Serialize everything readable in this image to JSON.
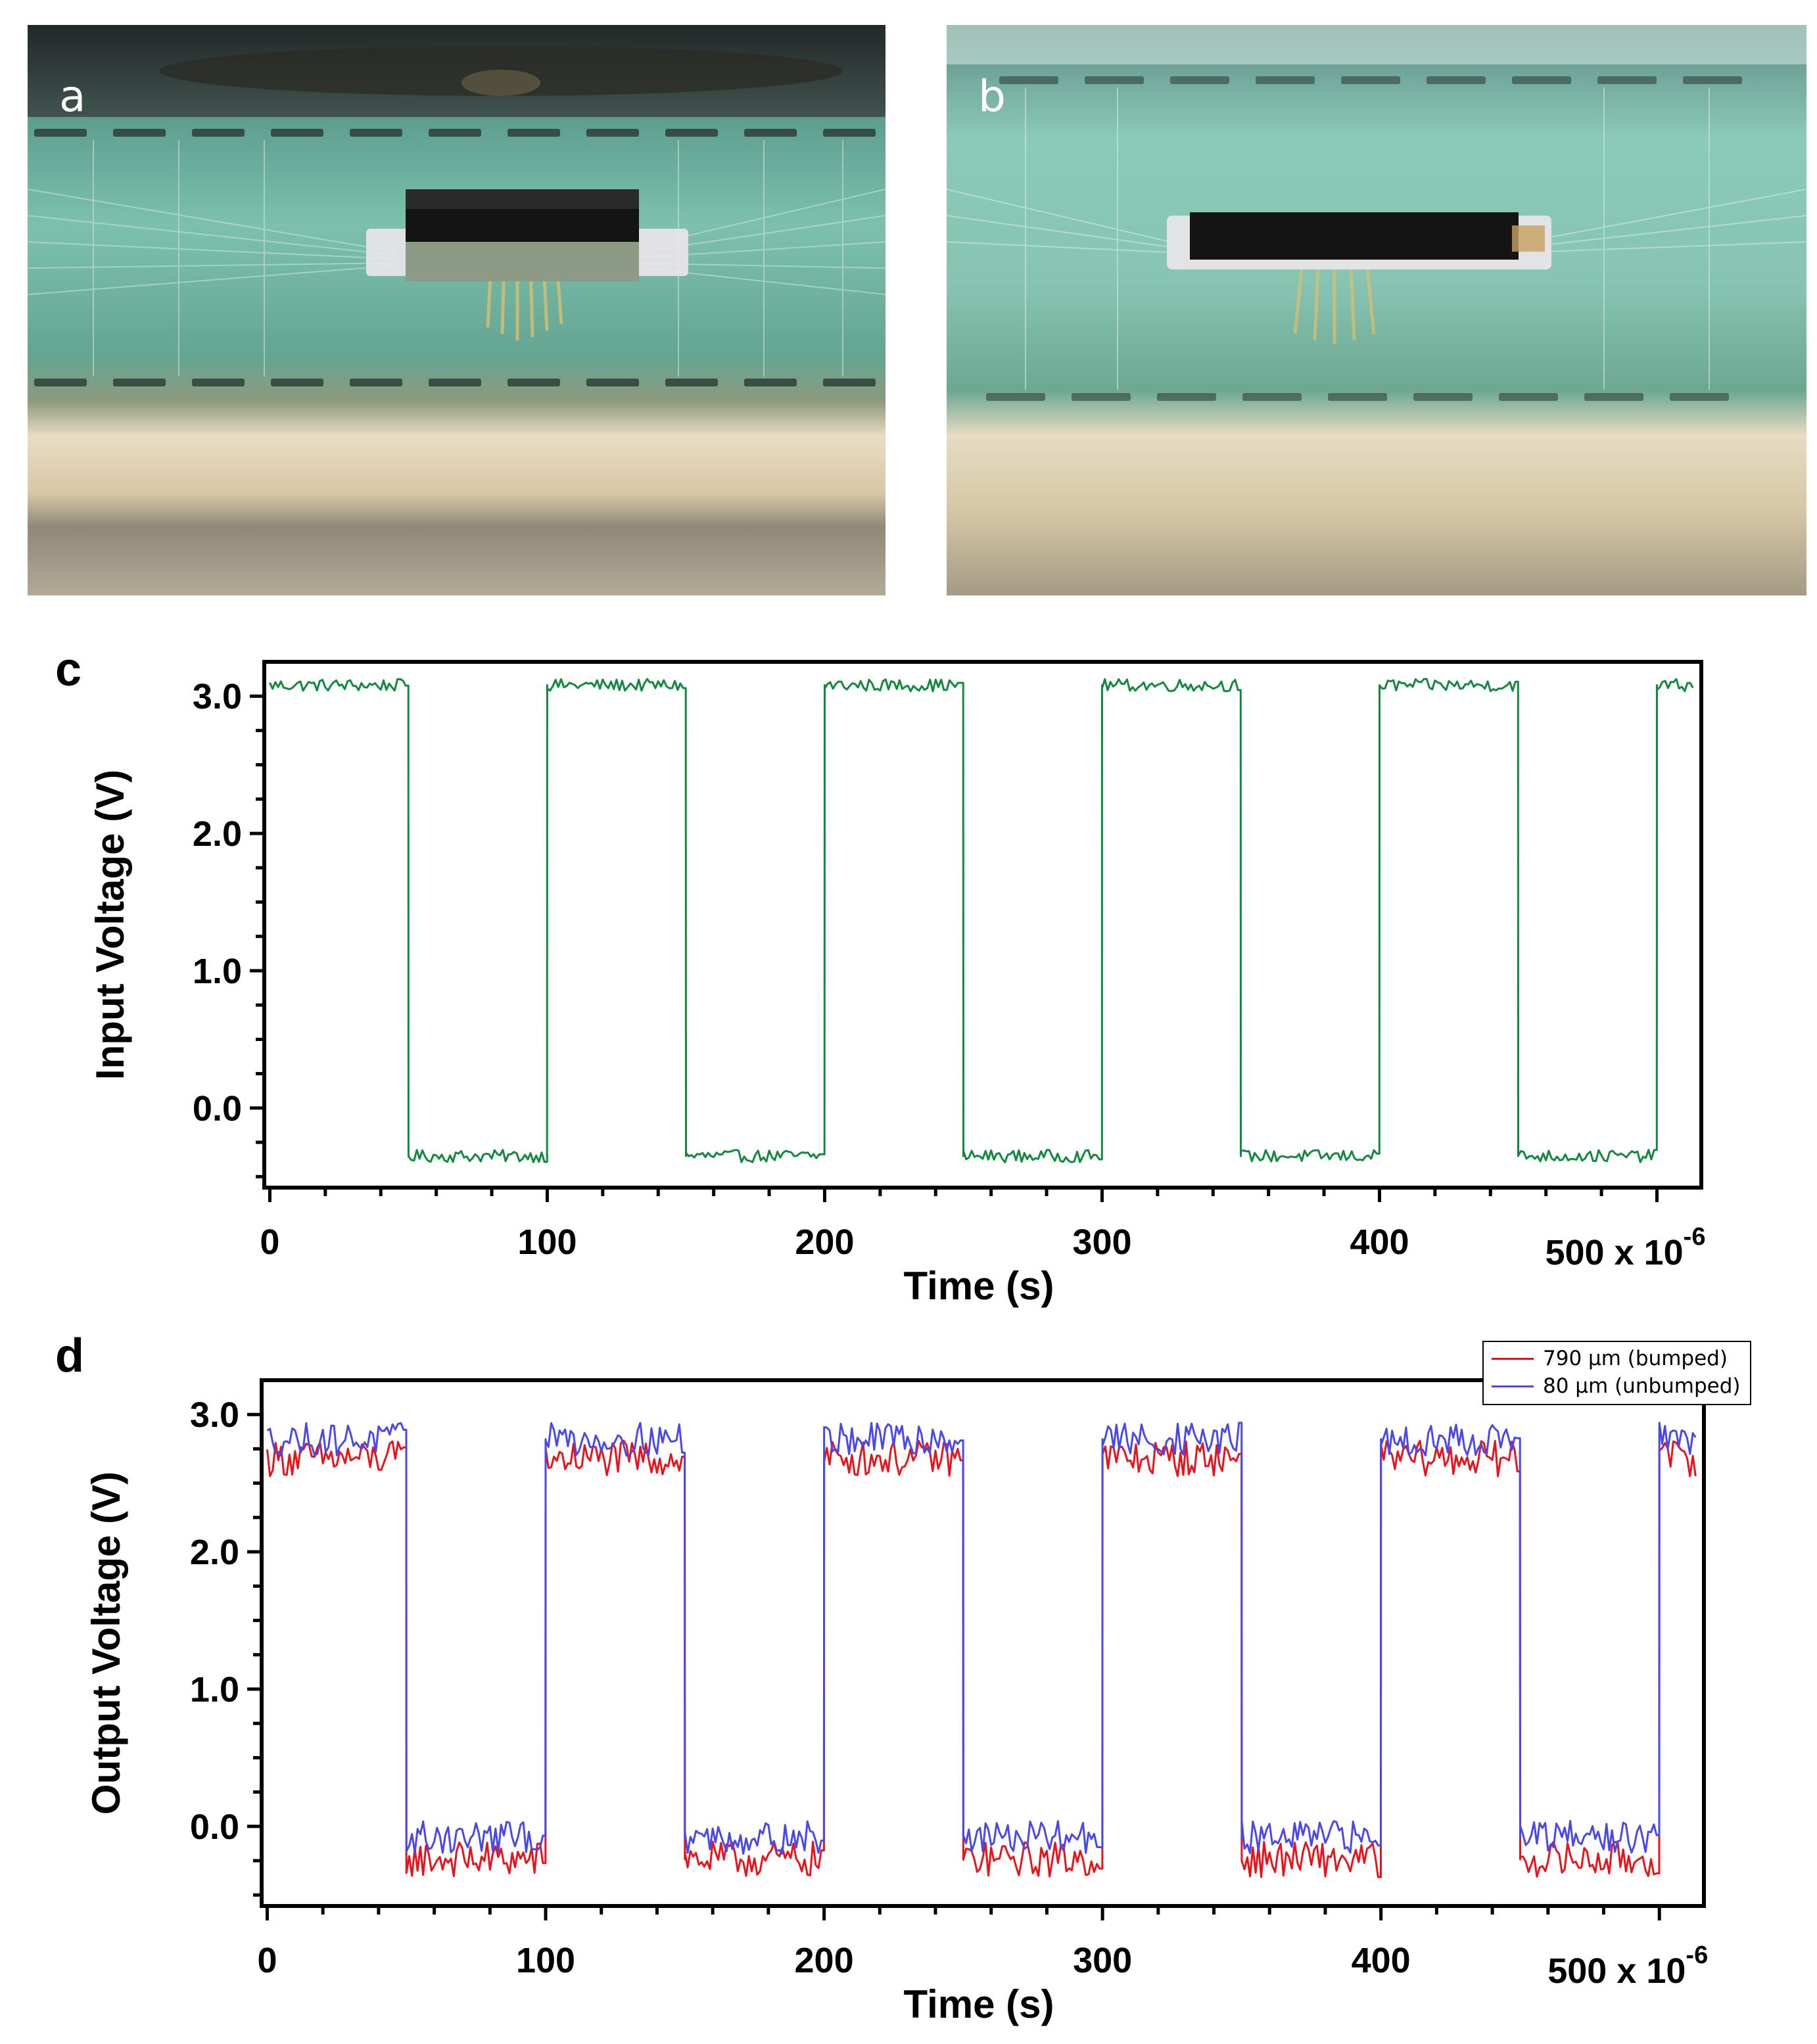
{
  "panels": {
    "a": {
      "label": "a"
    },
    "b": {
      "label": "b"
    },
    "c": {
      "label": "c"
    },
    "d": {
      "label": "d"
    }
  },
  "colors": {
    "input_trace": "#118a3e",
    "bumped_trace": "#e8141c",
    "unbumped_trace": "#4a48e8",
    "board_green": "#6fb3a1",
    "chip_black": "#141414"
  },
  "chart_data": [
    {
      "type": "line",
      "panel": "c",
      "xlabel": "Time (s)",
      "ylabel": "Input Voltage (V)",
      "x_tick_labels": [
        "0",
        "100",
        "200",
        "300",
        "400",
        "500 x 10"
      ],
      "x_exponent": "-6",
      "x_ticks": [
        0,
        100,
        200,
        300,
        400,
        500
      ],
      "y_tick_labels": [
        "3.0",
        "2.0",
        "1.0",
        "0.0"
      ],
      "y_ticks": [
        3.0,
        2.0,
        1.0,
        0.0
      ],
      "xlim": [
        -2,
        516
      ],
      "ylim": [
        -0.58,
        3.25
      ],
      "grid": false,
      "legend": "none",
      "series": [
        {
          "color_key": "input_trace",
          "waveform": "square",
          "period": 100,
          "high": 3.08,
          "low": -0.35,
          "first_high_start": 0,
          "noise_amplitude": 0.045,
          "x_end": 513
        }
      ]
    },
    {
      "type": "line",
      "panel": "d",
      "xlabel": "Time (s)",
      "ylabel": "Output Voltage (V)",
      "x_tick_labels": [
        "0",
        "100",
        "200",
        "300",
        "400",
        "500 x 10"
      ],
      "x_exponent": "-6",
      "x_ticks": [
        0,
        100,
        200,
        300,
        400,
        500
      ],
      "y_tick_labels": [
        "3.0",
        "2.0",
        "1.0",
        "0.0"
      ],
      "y_ticks": [
        3.0,
        2.0,
        1.0,
        0.0
      ],
      "xlim": [
        -2,
        516
      ],
      "ylim": [
        -0.58,
        3.25
      ],
      "grid": false,
      "legend": "top-right",
      "series": [
        {
          "name": "790 µm (bumped)",
          "color_key": "bumped_trace",
          "waveform": "square",
          "period": 100,
          "high": 2.68,
          "low": -0.24,
          "first_high_start": 0,
          "noise_amplitude": 0.13,
          "x_end": 513
        },
        {
          "name": "80 µm (unbumped)",
          "color_key": "unbumped_trace",
          "waveform": "square",
          "period": 100,
          "high": 2.82,
          "low": -0.08,
          "first_high_start": 0,
          "noise_amplitude": 0.12,
          "x_end": 513
        }
      ]
    }
  ]
}
